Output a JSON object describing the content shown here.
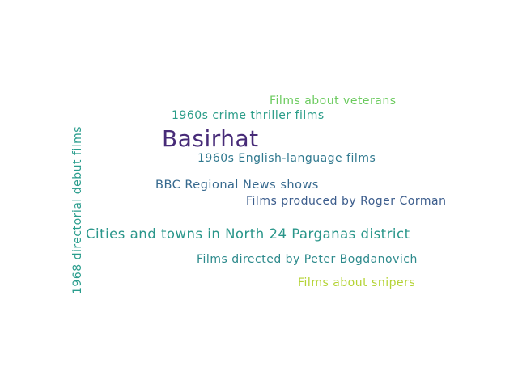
{
  "words": [
    {
      "text": "Basirhat",
      "color": "#472b78"
    },
    {
      "text": "Cities and towns in North 24 Parganas district",
      "color": "#2a968a"
    },
    {
      "text": "Films directed by Peter Bogdanovich",
      "color": "#2d8a8c"
    },
    {
      "text": "BBC Regional News shows",
      "color": "#37698e"
    },
    {
      "text": "Films produced by Roger Corman",
      "color": "#3b5c8c"
    },
    {
      "text": "1960s English-language films",
      "color": "#2f788e"
    },
    {
      "text": "1960s crime thriller films",
      "color": "#2a9c88"
    },
    {
      "text": "Films about veterans",
      "color": "#6ccb5f"
    },
    {
      "text": "Films about snipers",
      "color": "#b4d334"
    },
    {
      "text": "1968 directorial debut films",
      "color": "#2a9d8d"
    }
  ]
}
